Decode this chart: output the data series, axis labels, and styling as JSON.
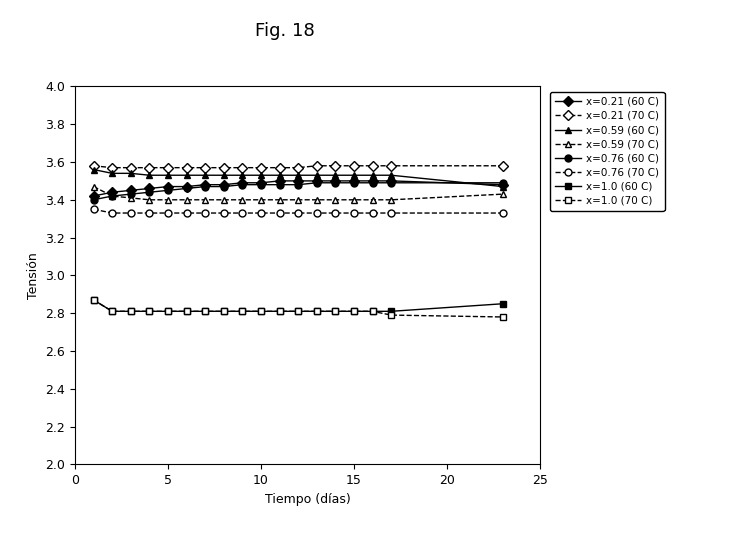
{
  "title": "Fig. 18",
  "xlabel": "Tiempo (días)",
  "ylabel": "Tensión",
  "xlim": [
    0,
    25
  ],
  "ylim": [
    2.0,
    4.0
  ],
  "yticks": [
    2.0,
    2.2,
    2.4,
    2.6,
    2.8,
    3.0,
    3.2,
    3.4,
    3.6,
    3.8,
    4.0
  ],
  "xticks": [
    0,
    5,
    10,
    15,
    20,
    25
  ],
  "series": [
    {
      "label": "x=0.21 (60 C)",
      "x": [
        1,
        2,
        3,
        4,
        5,
        6,
        7,
        8,
        9,
        10,
        11,
        12,
        13,
        14,
        15,
        16,
        17,
        23
      ],
      "y": [
        3.42,
        3.44,
        3.45,
        3.46,
        3.47,
        3.47,
        3.48,
        3.48,
        3.49,
        3.49,
        3.5,
        3.5,
        3.5,
        3.5,
        3.5,
        3.5,
        3.5,
        3.48
      ],
      "linestyle": "-",
      "marker": "D",
      "markerfacecolor": "black",
      "color": "black"
    },
    {
      "label": "x=0.21 (70 C)",
      "x": [
        1,
        2,
        3,
        4,
        5,
        6,
        7,
        8,
        9,
        10,
        11,
        12,
        13,
        14,
        15,
        16,
        17,
        23
      ],
      "y": [
        3.58,
        3.57,
        3.57,
        3.57,
        3.57,
        3.57,
        3.57,
        3.57,
        3.57,
        3.57,
        3.57,
        3.57,
        3.58,
        3.58,
        3.58,
        3.58,
        3.58,
        3.58
      ],
      "linestyle": "--",
      "marker": "D",
      "markerfacecolor": "white",
      "color": "black"
    },
    {
      "label": "x=0.59 (60 C)",
      "x": [
        1,
        2,
        3,
        4,
        5,
        6,
        7,
        8,
        9,
        10,
        11,
        12,
        13,
        14,
        15,
        16,
        17,
        23
      ],
      "y": [
        3.56,
        3.54,
        3.54,
        3.53,
        3.53,
        3.53,
        3.53,
        3.53,
        3.53,
        3.53,
        3.53,
        3.53,
        3.53,
        3.53,
        3.53,
        3.53,
        3.53,
        3.47
      ],
      "linestyle": "-",
      "marker": "^",
      "markerfacecolor": "black",
      "color": "black"
    },
    {
      "label": "x=0.59 (70 C)",
      "x": [
        1,
        2,
        3,
        4,
        5,
        6,
        7,
        8,
        9,
        10,
        11,
        12,
        13,
        14,
        15,
        16,
        17,
        23
      ],
      "y": [
        3.47,
        3.42,
        3.41,
        3.4,
        3.4,
        3.4,
        3.4,
        3.4,
        3.4,
        3.4,
        3.4,
        3.4,
        3.4,
        3.4,
        3.4,
        3.4,
        3.4,
        3.43
      ],
      "linestyle": "--",
      "marker": "^",
      "markerfacecolor": "white",
      "color": "black"
    },
    {
      "label": "x=0.76 (60 C)",
      "x": [
        1,
        2,
        3,
        4,
        5,
        6,
        7,
        8,
        9,
        10,
        11,
        12,
        13,
        14,
        15,
        16,
        17,
        23
      ],
      "y": [
        3.4,
        3.42,
        3.43,
        3.44,
        3.45,
        3.46,
        3.47,
        3.47,
        3.48,
        3.48,
        3.48,
        3.48,
        3.49,
        3.49,
        3.49,
        3.49,
        3.49,
        3.49
      ],
      "linestyle": "-",
      "marker": "o",
      "markerfacecolor": "black",
      "color": "black"
    },
    {
      "label": "x=0.76 (70 C)",
      "x": [
        1,
        2,
        3,
        4,
        5,
        6,
        7,
        8,
        9,
        10,
        11,
        12,
        13,
        14,
        15,
        16,
        17,
        23
      ],
      "y": [
        3.35,
        3.33,
        3.33,
        3.33,
        3.33,
        3.33,
        3.33,
        3.33,
        3.33,
        3.33,
        3.33,
        3.33,
        3.33,
        3.33,
        3.33,
        3.33,
        3.33,
        3.33
      ],
      "linestyle": "--",
      "marker": "o",
      "markerfacecolor": "white",
      "color": "black"
    },
    {
      "label": "x=1.0 (60 C)",
      "x": [
        1,
        2,
        3,
        4,
        5,
        6,
        7,
        8,
        9,
        10,
        11,
        12,
        13,
        14,
        15,
        16,
        17,
        23
      ],
      "y": [
        2.87,
        2.81,
        2.81,
        2.81,
        2.81,
        2.81,
        2.81,
        2.81,
        2.81,
        2.81,
        2.81,
        2.81,
        2.81,
        2.81,
        2.81,
        2.81,
        2.81,
        2.85
      ],
      "linestyle": "-",
      "marker": "s",
      "markerfacecolor": "black",
      "color": "black"
    },
    {
      "label": "x=1.0 (70 C)",
      "x": [
        1,
        2,
        3,
        4,
        5,
        6,
        7,
        8,
        9,
        10,
        11,
        12,
        13,
        14,
        15,
        16,
        17,
        23
      ],
      "y": [
        2.87,
        2.81,
        2.81,
        2.81,
        2.81,
        2.81,
        2.81,
        2.81,
        2.81,
        2.81,
        2.81,
        2.81,
        2.81,
        2.81,
        2.81,
        2.81,
        2.79,
        2.78
      ],
      "linestyle": "--",
      "marker": "s",
      "markerfacecolor": "white",
      "color": "black"
    }
  ],
  "fig_bg": "#ffffff",
  "ax_bg": "#ffffff",
  "title_fontsize": 13,
  "xlabel_fontsize": 9,
  "ylabel_fontsize": 9,
  "tick_fontsize": 9,
  "legend_fontsize": 7.5,
  "markersize": 5,
  "linewidth": 1.0
}
